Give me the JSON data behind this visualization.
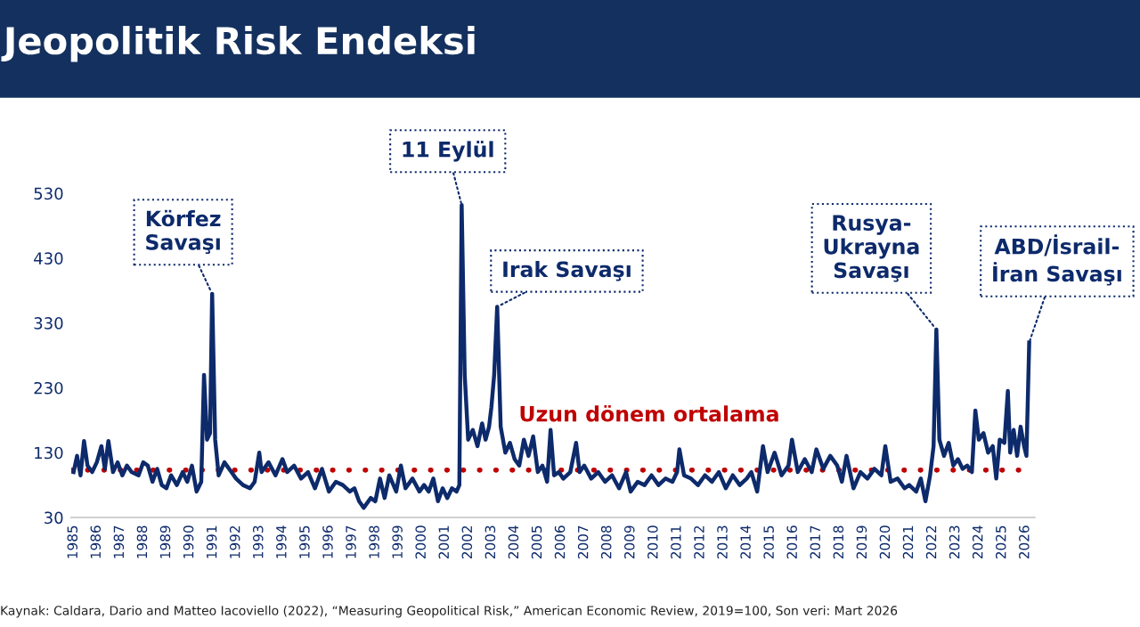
{
  "chart_data": {
    "type": "line",
    "title": "Jeopolitik Risk Endeksi",
    "x": [
      1985.0,
      1985.15,
      1985.3,
      1985.45,
      1985.6,
      1985.8,
      1986.0,
      1986.2,
      1986.35,
      1986.5,
      1986.7,
      1986.9,
      1987.1,
      1987.3,
      1987.5,
      1987.8,
      1988.0,
      1988.2,
      1988.4,
      1988.6,
      1988.8,
      1989.0,
      1989.2,
      1989.45,
      1989.7,
      1989.9,
      1990.1,
      1990.3,
      1990.5,
      1990.62,
      1990.75,
      1990.88,
      1990.97,
      1991.1,
      1991.25,
      1991.5,
      1991.8,
      1992.0,
      1992.3,
      1992.6,
      1992.8,
      1993.0,
      1993.1,
      1993.4,
      1993.7,
      1994.0,
      1994.2,
      1994.5,
      1994.8,
      1995.1,
      1995.4,
      1995.7,
      1996.0,
      1996.3,
      1996.6,
      1996.9,
      1997.1,
      1997.3,
      1997.5,
      1997.8,
      1998.0,
      1998.2,
      1998.4,
      1998.6,
      1998.9,
      1999.1,
      1999.3,
      1999.6,
      1999.9,
      2000.1,
      2000.3,
      2000.5,
      2000.7,
      2000.9,
      2001.1,
      2001.3,
      2001.5,
      2001.62,
      2001.72,
      2001.85,
      2002.0,
      2002.2,
      2002.4,
      2002.6,
      2002.75,
      2002.9,
      2003.0,
      2003.12,
      2003.25,
      2003.4,
      2003.6,
      2003.8,
      2004.0,
      2004.2,
      2004.4,
      2004.6,
      2004.8,
      2005.0,
      2005.2,
      2005.4,
      2005.55,
      2005.7,
      2005.9,
      2006.1,
      2006.4,
      2006.65,
      2006.8,
      2007.0,
      2007.3,
      2007.6,
      2007.9,
      2008.2,
      2008.5,
      2008.8,
      2009.0,
      2009.3,
      2009.6,
      2009.9,
      2010.2,
      2010.5,
      2010.8,
      2011.0,
      2011.1,
      2011.3,
      2011.6,
      2011.9,
      2012.2,
      2012.5,
      2012.8,
      2013.1,
      2013.4,
      2013.7,
      2014.0,
      2014.2,
      2014.45,
      2014.7,
      2014.9,
      2015.2,
      2015.5,
      2015.8,
      2015.95,
      2016.2,
      2016.5,
      2016.8,
      2017.0,
      2017.3,
      2017.6,
      2017.9,
      2018.1,
      2018.3,
      2018.6,
      2018.9,
      2019.2,
      2019.5,
      2019.8,
      2019.97,
      2020.2,
      2020.5,
      2020.8,
      2021.0,
      2021.3,
      2021.5,
      2021.7,
      2021.9,
      2022.05,
      2022.17,
      2022.3,
      2022.5,
      2022.7,
      2022.9,
      2023.1,
      2023.3,
      2023.5,
      2023.7,
      2023.85,
      2024.0,
      2024.2,
      2024.4,
      2024.6,
      2024.75,
      2024.9,
      2025.1,
      2025.25,
      2025.35,
      2025.5,
      2025.65,
      2025.8,
      2025.95,
      2026.05,
      2026.17
    ],
    "series": [
      {
        "color": "#0d2a6b",
        "values": [
          100,
          125,
          95,
          148,
          110,
          100,
          115,
          140,
          105,
          148,
          100,
          115,
          95,
          110,
          100,
          95,
          115,
          110,
          85,
          105,
          80,
          75,
          95,
          80,
          100,
          85,
          110,
          70,
          85,
          250,
          150,
          160,
          375,
          150,
          95,
          115,
          100,
          90,
          80,
          75,
          85,
          130,
          100,
          115,
          95,
          120,
          100,
          110,
          90,
          100,
          75,
          105,
          70,
          85,
          80,
          70,
          75,
          55,
          45,
          60,
          55,
          90,
          60,
          95,
          70,
          110,
          75,
          90,
          70,
          80,
          70,
          90,
          55,
          75,
          60,
          75,
          70,
          80,
          512,
          250,
          150,
          165,
          140,
          175,
          150,
          170,
          200,
          250,
          355,
          170,
          130,
          145,
          120,
          110,
          150,
          125,
          155,
          100,
          110,
          85,
          165,
          95,
          100,
          90,
          100,
          145,
          100,
          110,
          90,
          100,
          85,
          95,
          75,
          100,
          70,
          85,
          80,
          95,
          80,
          90,
          85,
          100,
          135,
          95,
          90,
          80,
          95,
          85,
          100,
          75,
          95,
          80,
          90,
          100,
          70,
          140,
          100,
          130,
          95,
          110,
          150,
          100,
          120,
          100,
          135,
          105,
          125,
          110,
          85,
          125,
          75,
          100,
          90,
          105,
          95,
          140,
          85,
          90,
          75,
          80,
          70,
          90,
          55,
          95,
          140,
          320,
          150,
          125,
          145,
          110,
          120,
          105,
          110,
          100,
          195,
          150,
          160,
          130,
          140,
          90,
          150,
          145,
          225,
          130,
          165,
          125,
          170,
          140,
          125,
          300
        ]
      }
    ],
    "xlim": [
      1984.9,
      2026.4
    ],
    "xticks": [
      1985,
      1986,
      1987,
      1988,
      1989,
      1990,
      1991,
      1992,
      1993,
      1994,
      1995,
      1996,
      1997,
      1998,
      1999,
      2000,
      2001,
      2002,
      2003,
      2004,
      2005,
      2006,
      2007,
      2008,
      2009,
      2010,
      2011,
      2012,
      2013,
      2014,
      2015,
      2016,
      2017,
      2018,
      2019,
      2020,
      2021,
      2022,
      2023,
      2024,
      2025,
      2026
    ],
    "ylim": [
      30,
      530
    ],
    "yticks": [
      30,
      130,
      230,
      330,
      430,
      530
    ],
    "grid": false,
    "legend": false,
    "marker": "none",
    "line_style": "solid",
    "ref_lines": [
      {
        "axis": "y",
        "value": 103,
        "label": "Uzun dönem ortalama",
        "color": "#c00000",
        "line_style": "dotted"
      }
    ],
    "annotations": [
      {
        "text": "Körfez\nSavaşı",
        "x": 1990.97,
        "y": 375
      },
      {
        "text": "11 Eylül",
        "x": 2001.72,
        "y": 512
      },
      {
        "text": "Irak Savaşı",
        "x": 2003.25,
        "y": 355
      },
      {
        "text": "Rusya-\nUkrayna\nSavaşı",
        "x": 2022.17,
        "y": 320
      },
      {
        "text": "ABD/İsrail-\nİran Savaşı",
        "x": 2026.17,
        "y": 300
      },
      "Kaynak: Caldara, Dario and Matteo Iacoviello (2022), “Measuring Geopolitical Risk,” American Economic Review, 2019=100, Son veri: Mart 2026"
    ]
  }
}
